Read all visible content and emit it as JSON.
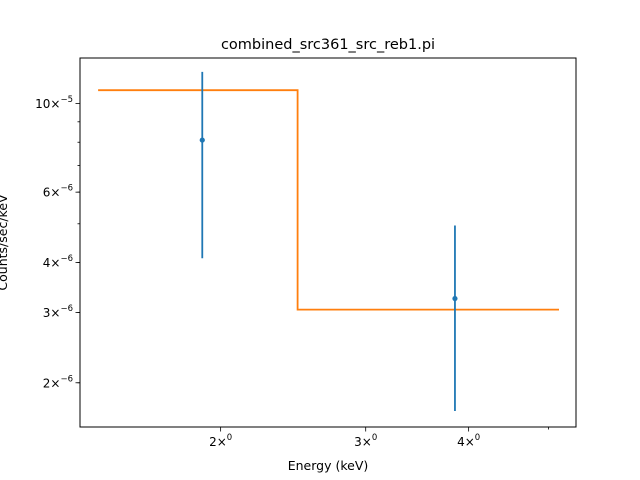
{
  "chart_data": {
    "type": "scatter",
    "title": "combined_src361_src_reb1.pi",
    "xlabel": "Energy (keV)",
    "ylabel": "Counts/sec/keV",
    "xscale": "log",
    "yscale": "log",
    "xlim": [
      1.35,
      5.4
    ],
    "ylim": [
      1.55e-06,
      1.3e-05
    ],
    "grid": false,
    "x_ticks": [
      {
        "value": 2,
        "base": "2",
        "exp": "0"
      },
      {
        "value": 3,
        "base": "3",
        "exp": "0"
      },
      {
        "value": 4,
        "base": "4",
        "exp": "0"
      }
    ],
    "y_ticks": [
      {
        "value": 1e-05,
        "base": "10",
        "exp": "−5"
      },
      {
        "value": 6e-06,
        "base": "6",
        "exp": "−6"
      },
      {
        "value": 4e-06,
        "base": "4",
        "exp": "−6"
      },
      {
        "value": 3e-06,
        "base": "3",
        "exp": "−6"
      },
      {
        "value": 2e-06,
        "base": "2",
        "exp": "−6"
      }
    ],
    "series": [
      {
        "kind": "data",
        "color": "#1f77b4",
        "points": [
          {
            "x": 1.9,
            "y": 8.1e-06,
            "ylow": 4.1e-06,
            "yhigh": 1.2e-05
          },
          {
            "x": 3.85,
            "y": 3.25e-06,
            "ylow": 1.7e-06,
            "yhigh": 4.95e-06
          }
        ]
      },
      {
        "kind": "model",
        "color": "#ff7f0e",
        "steps": [
          {
            "x0": 1.42,
            "x1": 2.48,
            "y": 1.08e-05
          },
          {
            "x0": 2.48,
            "x1": 5.15,
            "y": 3.05e-06
          }
        ]
      }
    ]
  }
}
